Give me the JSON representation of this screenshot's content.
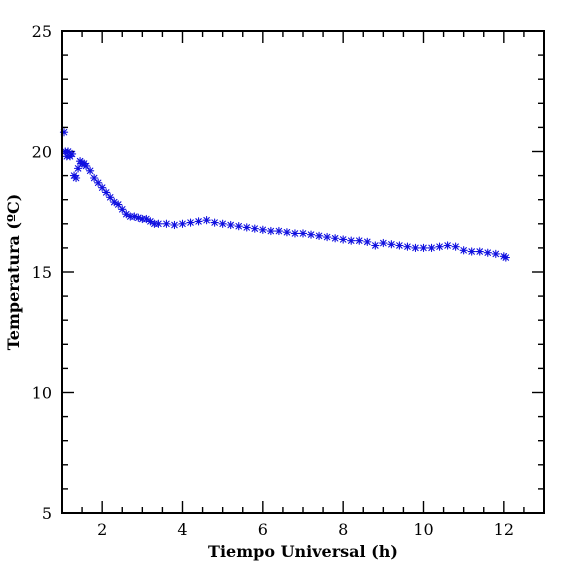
{
  "chart_data": {
    "type": "scatter",
    "xlabel": "Tiempo Universal (h)",
    "ylabel": "Temperatura (ºC)",
    "xlim": [
      1,
      13
    ],
    "ylim": [
      5,
      25
    ],
    "x_ticks": [
      2,
      4,
      6,
      8,
      10,
      12
    ],
    "x_tick_labels": [
      "2",
      "4",
      "6",
      "8",
      "10",
      "12"
    ],
    "y_ticks": [
      5,
      10,
      15,
      20,
      25
    ],
    "y_tick_labels": [
      "5",
      "10",
      "15",
      "20",
      "25"
    ],
    "x_minor_step": 0.5,
    "y_minor_step": 1,
    "grid": false,
    "marker": "asterisk",
    "colors": {
      "marker": "#1010e0",
      "axis": "#000000"
    },
    "series": [
      {
        "x": [
          1.05,
          1.08,
          1.12,
          1.15,
          1.2,
          1.25,
          1.3,
          1.35,
          1.4,
          1.45,
          1.5,
          1.55,
          1.6,
          1.7,
          1.8,
          1.9,
          2.0,
          2.1,
          2.2,
          2.3,
          2.4,
          2.5,
          2.6,
          2.7,
          2.8,
          2.9,
          3.0,
          3.1,
          3.2,
          3.3,
          3.4,
          3.6,
          3.8,
          4.0,
          4.2,
          4.4,
          4.6,
          4.8,
          5.0,
          5.2,
          5.4,
          5.6,
          5.8,
          6.0,
          6.2,
          6.4,
          6.6,
          6.8,
          7.0,
          7.2,
          7.4,
          7.6,
          7.8,
          8.0,
          8.2,
          8.4,
          8.6,
          8.8,
          9.0,
          9.2,
          9.4,
          9.6,
          9.8,
          10.0,
          10.2,
          10.4,
          10.6,
          10.8,
          11.0,
          11.2,
          11.4,
          11.6,
          11.8,
          12.0,
          12.05
        ],
        "y": [
          20.8,
          20.0,
          19.8,
          20.0,
          19.8,
          19.9,
          19.0,
          18.9,
          19.3,
          19.6,
          19.5,
          19.5,
          19.4,
          19.2,
          18.9,
          18.7,
          18.5,
          18.3,
          18.1,
          17.9,
          17.8,
          17.6,
          17.4,
          17.3,
          17.3,
          17.25,
          17.2,
          17.2,
          17.1,
          17.0,
          17.0,
          17.0,
          16.95,
          17.0,
          17.05,
          17.1,
          17.15,
          17.05,
          17.0,
          16.95,
          16.9,
          16.85,
          16.8,
          16.75,
          16.7,
          16.7,
          16.65,
          16.6,
          16.6,
          16.55,
          16.5,
          16.45,
          16.4,
          16.35,
          16.3,
          16.3,
          16.25,
          16.1,
          16.2,
          16.15,
          16.1,
          16.05,
          16.0,
          16.0,
          16.0,
          16.05,
          16.1,
          16.05,
          15.9,
          15.85,
          15.85,
          15.8,
          15.75,
          15.65,
          15.6
        ]
      }
    ]
  }
}
